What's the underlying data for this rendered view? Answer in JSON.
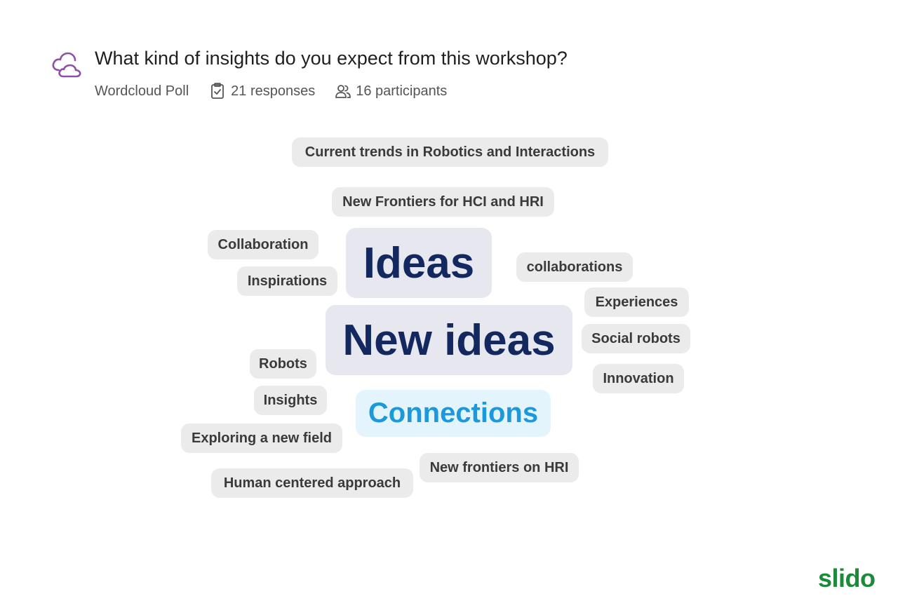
{
  "header": {
    "icon": "cloud-icon",
    "question": "What kind of insights do you expect from this workshop?",
    "poll_type": "Wordcloud Poll",
    "responses_icon": "clipboard-check-icon",
    "responses": "21 responses",
    "participants_icon": "users-icon",
    "participants": "16 participants"
  },
  "wordcloud": {
    "words": [
      "Current trends in Robotics and Interactions",
      "New Frontiers for HCI and HRI",
      "Collaboration",
      "Ideas",
      "collaborations",
      "Inspirations",
      "Experiences",
      "New ideas",
      "Social robots",
      "Robots",
      "Innovation",
      "Insights",
      "Connections",
      "Exploring a new field",
      "New frontiers on HRI",
      "Human centered approach"
    ]
  },
  "brand": {
    "logo_text": "slido",
    "color": "#1c8a3a"
  },
  "colors": {
    "icon_purple": "#8e4fa8",
    "big_word": "#13285e",
    "highlight_word": "#1a99dc"
  }
}
